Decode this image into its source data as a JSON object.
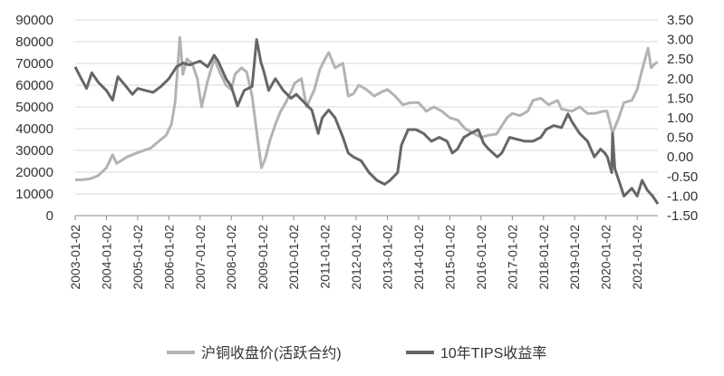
{
  "chart_data": {
    "type": "line",
    "title": "",
    "xlabel": "",
    "ylabel_left": "",
    "ylabel_right": "",
    "x_ticks": [
      "2003-01-02",
      "2004-01-02",
      "2005-01-02",
      "2006-01-02",
      "2007-01-02",
      "2008-01-02",
      "2009-01-02",
      "2010-01-02",
      "2011-01-02",
      "2012-01-02",
      "2013-01-02",
      "2014-01-02",
      "2015-01-02",
      "2016-01-02",
      "2017-01-02",
      "2018-01-02",
      "2019-01-02",
      "2020-01-02",
      "2021-01-02"
    ],
    "y_left": {
      "min": 0,
      "max": 90000,
      "ticks": [
        "0",
        "10000",
        "20000",
        "30000",
        "40000",
        "50000",
        "60000",
        "70000",
        "80000",
        "90000"
      ]
    },
    "y_right": {
      "min": -1.5,
      "max": 3.5,
      "ticks": [
        "-1.50",
        "-1.00",
        "-0.50",
        "0.00",
        "0.50",
        "1.00",
        "1.50",
        "2.00",
        "2.50",
        "3.00",
        "3.50"
      ]
    },
    "grid": true,
    "legend_position": "bottom",
    "series": [
      {
        "name": "沪铜收盘价(活跃合约)",
        "axis": "left",
        "color": "#b3b3b3",
        "points": [
          [
            "2003-01-02",
            16500
          ],
          [
            "2003-04-01",
            16500
          ],
          [
            "2003-07-01",
            17000
          ],
          [
            "2003-10-01",
            18500
          ],
          [
            "2004-01-02",
            22000
          ],
          [
            "2004-03-15",
            28000
          ],
          [
            "2004-05-01",
            24000
          ],
          [
            "2004-09-01",
            27000
          ],
          [
            "2005-01-02",
            29000
          ],
          [
            "2005-06-01",
            31000
          ],
          [
            "2005-09-01",
            34000
          ],
          [
            "2005-12-01",
            37000
          ],
          [
            "2006-02-01",
            42000
          ],
          [
            "2006-03-15",
            52000
          ],
          [
            "2006-05-10",
            82000
          ],
          [
            "2006-06-15",
            65000
          ],
          [
            "2006-08-01",
            72000
          ],
          [
            "2006-10-01",
            70000
          ],
          [
            "2006-12-01",
            63000
          ],
          [
            "2007-01-20",
            50000
          ],
          [
            "2007-04-01",
            62000
          ],
          [
            "2007-06-15",
            72000
          ],
          [
            "2007-09-01",
            65000
          ],
          [
            "2007-11-01",
            60000
          ],
          [
            "2008-01-02",
            58000
          ],
          [
            "2008-02-15",
            65000
          ],
          [
            "2008-05-01",
            68000
          ],
          [
            "2008-07-01",
            66000
          ],
          [
            "2008-09-01",
            55000
          ],
          [
            "2008-10-20",
            40000
          ],
          [
            "2008-12-20",
            22000
          ],
          [
            "2009-02-01",
            26000
          ],
          [
            "2009-04-01",
            35000
          ],
          [
            "2009-06-01",
            42000
          ],
          [
            "2009-08-01",
            48000
          ],
          [
            "2009-10-01",
            52000
          ],
          [
            "2009-12-01",
            57000
          ],
          [
            "2010-01-15",
            61000
          ],
          [
            "2010-04-01",
            63000
          ],
          [
            "2010-06-01",
            50000
          ],
          [
            "2010-09-01",
            58000
          ],
          [
            "2010-11-01",
            67000
          ],
          [
            "2011-01-02",
            72000
          ],
          [
            "2011-02-15",
            75000
          ],
          [
            "2011-05-01",
            68000
          ],
          [
            "2011-08-01",
            70000
          ],
          [
            "2011-10-01",
            55000
          ],
          [
            "2011-12-01",
            56000
          ],
          [
            "2012-02-01",
            60000
          ],
          [
            "2012-05-01",
            58000
          ],
          [
            "2012-08-01",
            55000
          ],
          [
            "2012-11-01",
            57000
          ],
          [
            "2013-01-02",
            58000
          ],
          [
            "2013-04-01",
            55000
          ],
          [
            "2013-07-01",
            51000
          ],
          [
            "2013-10-01",
            52000
          ],
          [
            "2014-01-02",
            52000
          ],
          [
            "2014-04-01",
            48000
          ],
          [
            "2014-07-01",
            50000
          ],
          [
            "2014-10-01",
            48000
          ],
          [
            "2015-01-02",
            45000
          ],
          [
            "2015-04-01",
            44000
          ],
          [
            "2015-07-01",
            40000
          ],
          [
            "2015-10-01",
            38000
          ],
          [
            "2016-01-02",
            36000
          ],
          [
            "2016-04-01",
            37000
          ],
          [
            "2016-07-01",
            37500
          ],
          [
            "2016-11-01",
            45000
          ],
          [
            "2017-01-02",
            47000
          ],
          [
            "2017-04-01",
            46000
          ],
          [
            "2017-07-01",
            48000
          ],
          [
            "2017-09-01",
            53000
          ],
          [
            "2017-12-01",
            54000
          ],
          [
            "2018-03-01",
            51000
          ],
          [
            "2018-06-15",
            53000
          ],
          [
            "2018-08-01",
            49000
          ],
          [
            "2018-12-01",
            48000
          ],
          [
            "2019-03-01",
            50000
          ],
          [
            "2019-06-01",
            47000
          ],
          [
            "2019-09-01",
            47000
          ],
          [
            "2019-12-01",
            48000
          ],
          [
            "2020-01-15",
            48000
          ],
          [
            "2020-03-20",
            38000
          ],
          [
            "2020-06-01",
            45000
          ],
          [
            "2020-08-01",
            52000
          ],
          [
            "2020-11-01",
            53000
          ],
          [
            "2021-01-02",
            58000
          ],
          [
            "2021-03-01",
            67000
          ],
          [
            "2021-05-10",
            77000
          ],
          [
            "2021-06-15",
            68000
          ],
          [
            "2021-08-01",
            70000
          ],
          [
            "2021-09-01",
            70500
          ]
        ]
      },
      {
        "name": "10年TIPS收益率",
        "axis": "right",
        "color": "#666666",
        "points": [
          [
            "2003-01-02",
            2.3
          ],
          [
            "2003-03-01",
            2.05
          ],
          [
            "2003-05-15",
            1.75
          ],
          [
            "2003-07-15",
            2.15
          ],
          [
            "2003-10-01",
            1.9
          ],
          [
            "2004-01-02",
            1.7
          ],
          [
            "2004-03-15",
            1.45
          ],
          [
            "2004-05-15",
            2.05
          ],
          [
            "2004-08-01",
            1.85
          ],
          [
            "2004-11-01",
            1.6
          ],
          [
            "2005-01-02",
            1.75
          ],
          [
            "2005-04-01",
            1.7
          ],
          [
            "2005-07-01",
            1.65
          ],
          [
            "2005-10-01",
            1.8
          ],
          [
            "2006-01-02",
            2.0
          ],
          [
            "2006-04-01",
            2.3
          ],
          [
            "2006-06-15",
            2.4
          ],
          [
            "2006-09-01",
            2.35
          ],
          [
            "2006-11-01",
            2.4
          ],
          [
            "2007-01-02",
            2.45
          ],
          [
            "2007-04-01",
            2.3
          ],
          [
            "2007-06-15",
            2.6
          ],
          [
            "2007-08-01",
            2.45
          ],
          [
            "2007-11-01",
            2.0
          ],
          [
            "2008-01-02",
            1.8
          ],
          [
            "2008-03-15",
            1.3
          ],
          [
            "2008-06-01",
            1.7
          ],
          [
            "2008-09-01",
            1.8
          ],
          [
            "2008-10-25",
            3.0
          ],
          [
            "2008-11-20",
            2.7
          ],
          [
            "2008-12-15",
            2.4
          ],
          [
            "2009-01-15",
            2.2
          ],
          [
            "2009-03-15",
            1.7
          ],
          [
            "2009-06-01",
            2.0
          ],
          [
            "2009-09-01",
            1.7
          ],
          [
            "2009-12-01",
            1.5
          ],
          [
            "2010-02-01",
            1.6
          ],
          [
            "2010-05-01",
            1.4
          ],
          [
            "2010-08-01",
            1.2
          ],
          [
            "2010-10-15",
            0.6
          ],
          [
            "2010-12-01",
            1.0
          ],
          [
            "2011-02-15",
            1.2
          ],
          [
            "2011-05-01",
            1.0
          ],
          [
            "2011-08-01",
            0.5
          ],
          [
            "2011-10-01",
            0.1
          ],
          [
            "2011-12-01",
            0.0
          ],
          [
            "2012-03-01",
            -0.1
          ],
          [
            "2012-06-01",
            -0.4
          ],
          [
            "2012-09-01",
            -0.6
          ],
          [
            "2012-12-01",
            -0.7
          ],
          [
            "2013-02-01",
            -0.6
          ],
          [
            "2013-05-01",
            -0.4
          ],
          [
            "2013-06-15",
            0.3
          ],
          [
            "2013-09-01",
            0.7
          ],
          [
            "2013-12-01",
            0.7
          ],
          [
            "2014-03-01",
            0.6
          ],
          [
            "2014-06-01",
            0.4
          ],
          [
            "2014-09-01",
            0.5
          ],
          [
            "2014-12-01",
            0.4
          ],
          [
            "2015-02-01",
            0.1
          ],
          [
            "2015-04-01",
            0.2
          ],
          [
            "2015-06-15",
            0.5
          ],
          [
            "2015-09-01",
            0.6
          ],
          [
            "2015-12-01",
            0.7
          ],
          [
            "2016-02-01",
            0.35
          ],
          [
            "2016-04-01",
            0.2
          ],
          [
            "2016-07-10",
            0.0
          ],
          [
            "2016-09-01",
            0.1
          ],
          [
            "2016-12-01",
            0.5
          ],
          [
            "2017-03-01",
            0.45
          ],
          [
            "2017-06-01",
            0.4
          ],
          [
            "2017-09-01",
            0.4
          ],
          [
            "2017-12-01",
            0.5
          ],
          [
            "2018-02-01",
            0.7
          ],
          [
            "2018-05-01",
            0.8
          ],
          [
            "2018-08-01",
            0.75
          ],
          [
            "2018-10-15",
            1.1
          ],
          [
            "2018-12-01",
            0.9
          ],
          [
            "2019-03-01",
            0.6
          ],
          [
            "2019-06-01",
            0.4
          ],
          [
            "2019-08-20",
            0.0
          ],
          [
            "2019-11-01",
            0.2
          ],
          [
            "2019-12-20",
            0.1
          ],
          [
            "2020-01-20",
            0.0
          ],
          [
            "2020-03-10",
            -0.4
          ],
          [
            "2020-03-20",
            0.6
          ],
          [
            "2020-04-15",
            -0.3
          ],
          [
            "2020-06-01",
            -0.6
          ],
          [
            "2020-08-01",
            -1.0
          ],
          [
            "2020-11-01",
            -0.8
          ],
          [
            "2021-01-02",
            -1.0
          ],
          [
            "2021-03-01",
            -0.6
          ],
          [
            "2021-05-01",
            -0.85
          ],
          [
            "2021-07-01",
            -1.0
          ],
          [
            "2021-09-01",
            -1.2
          ]
        ]
      }
    ]
  }
}
